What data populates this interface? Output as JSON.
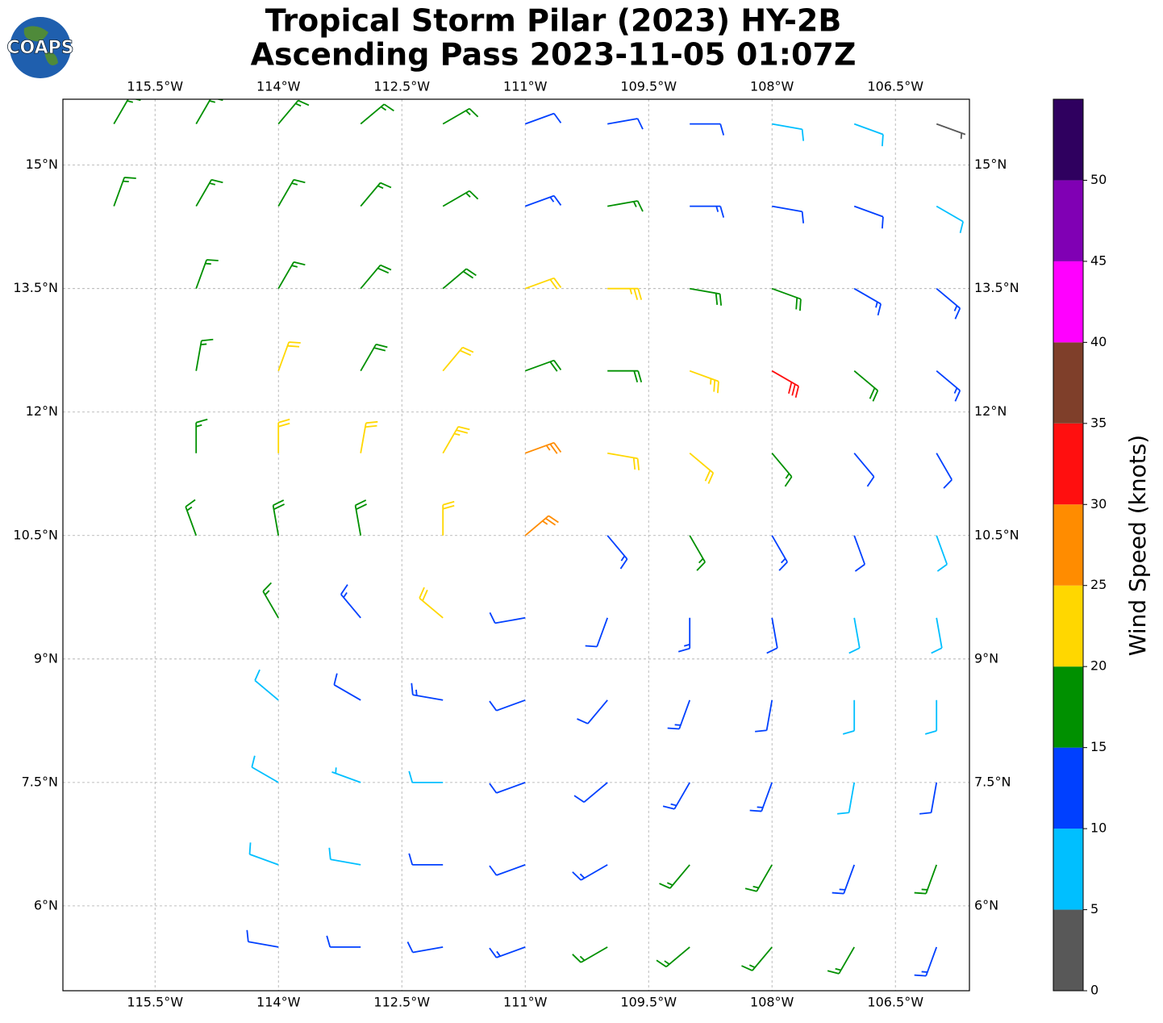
{
  "logo": "COAPS",
  "chart_data": {
    "type": "wind-barbs",
    "title": "Tropical Storm Pilar (2023) HY-2B",
    "subtitle": "Ascending Pass 2023-11-05 01:07Z",
    "xlim": [
      -116.62,
      -105.6
    ],
    "ylim": [
      4.97,
      15.8
    ],
    "grid": true,
    "xticks": [
      {
        "value": -115.5,
        "label": "115.5°W"
      },
      {
        "value": -114,
        "label": "114°W"
      },
      {
        "value": -112.5,
        "label": "112.5°W"
      },
      {
        "value": -111,
        "label": "111°W"
      },
      {
        "value": -109.5,
        "label": "109.5°W"
      },
      {
        "value": -108,
        "label": "108°W"
      },
      {
        "value": -106.5,
        "label": "106.5°W"
      }
    ],
    "yticks": [
      {
        "value": 6,
        "label": "6°N"
      },
      {
        "value": 7.5,
        "label": "7.5°N"
      },
      {
        "value": 9,
        "label": "9°N"
      },
      {
        "value": 10.5,
        "label": "10.5°N"
      },
      {
        "value": 12,
        "label": "12°N"
      },
      {
        "value": 13.5,
        "label": "13.5°N"
      },
      {
        "value": 15,
        "label": "15°N"
      }
    ],
    "colorbar": {
      "label": "Wind Speed (knots)",
      "lim": [
        0,
        55
      ],
      "ticks": [
        0,
        5,
        10,
        15,
        20,
        25,
        30,
        35,
        40,
        45,
        50
      ],
      "bins": [
        0,
        5,
        10,
        15,
        20,
        25,
        30,
        35,
        40,
        45,
        50,
        55
      ],
      "colors": [
        "#585858",
        "#00bfff",
        "#0040ff",
        "#009000",
        "#ffd700",
        "#ff8c00",
        "#ff0f0f",
        "#7f3f2a",
        "#ff00ff",
        "#8000b4",
        "#2f005f"
      ]
    },
    "winds": {
      "lon": [
        -116,
        -115,
        -114,
        -113,
        -112,
        -111,
        -110,
        -109,
        -108,
        -107,
        -106,
        -116,
        -115,
        -114,
        -113,
        -112,
        -111,
        -110,
        -109,
        -108,
        -107,
        -106,
        -115,
        -114,
        -113,
        -112,
        -111,
        -110,
        -109,
        -108,
        -107,
        -106,
        -115,
        -114,
        -113,
        -112,
        -111,
        -110,
        -109,
        -108,
        -107,
        -106,
        -115,
        -114,
        -113,
        -112,
        -111,
        -110,
        -109,
        -108,
        -107,
        -106,
        -115,
        -114,
        -113,
        -112,
        -111,
        -110,
        -109,
        -108,
        -107,
        -106,
        -114,
        -113,
        -112,
        -111,
        -110,
        -109,
        -108,
        -107,
        -106,
        -114,
        -113,
        -112,
        -111,
        -110,
        -109,
        -108,
        -107,
        -106,
        -114,
        -113,
        -112,
        -111,
        -110,
        -109,
        -108,
        -107,
        -106,
        -114,
        -113,
        -112,
        -111,
        -110,
        -109,
        -108,
        -107,
        -106,
        -114,
        -113,
        -112,
        -111,
        -110,
        -109,
        -108,
        -107,
        -106
      ],
      "lat": [
        15.5,
        15.5,
        15.5,
        15.5,
        15.5,
        15.5,
        15.5,
        15.5,
        15.5,
        15.5,
        15.5,
        14.5,
        14.5,
        14.5,
        14.5,
        14.5,
        14.5,
        14.5,
        14.5,
        14.5,
        14.5,
        14.5,
        13.5,
        13.5,
        13.5,
        13.5,
        13.5,
        13.5,
        13.5,
        13.5,
        13.5,
        13.5,
        12.5,
        12.5,
        12.5,
        12.5,
        12.5,
        12.5,
        12.5,
        12.5,
        12.5,
        12.5,
        11.5,
        11.5,
        11.5,
        11.5,
        11.5,
        11.5,
        11.5,
        11.5,
        11.5,
        11.5,
        10.5,
        10.5,
        10.5,
        10.5,
        10.5,
        10.5,
        10.5,
        10.5,
        10.5,
        10.5,
        9.5,
        9.5,
        9.5,
        9.5,
        9.5,
        9.5,
        9.5,
        9.5,
        9.5,
        8.5,
        8.5,
        8.5,
        8.5,
        8.5,
        8.5,
        8.5,
        8.5,
        8.5,
        7.5,
        7.5,
        7.5,
        7.5,
        7.5,
        7.5,
        7.5,
        7.5,
        7.5,
        6.5,
        6.5,
        6.5,
        6.5,
        6.5,
        6.5,
        6.5,
        6.5,
        6.5,
        5.5,
        5.5,
        5.5,
        5.5,
        5.5,
        5.5,
        5.5,
        5.5,
        5.5
      ],
      "speed": [
        17,
        17,
        17,
        17,
        17,
        12,
        12,
        12,
        8,
        8,
        4,
        17,
        17,
        17,
        17,
        17,
        14,
        16,
        13,
        12,
        12,
        8,
        17,
        17,
        18,
        19,
        22,
        23,
        19,
        18,
        14,
        13,
        17,
        21,
        19,
        22,
        18,
        19,
        24,
        32,
        19,
        13,
        17,
        21,
        22,
        23,
        27,
        22,
        21,
        16,
        12,
        11,
        17,
        18,
        19,
        22,
        26,
        13,
        16,
        13,
        11,
        9,
        17,
        13,
        21,
        11,
        12,
        13,
        12,
        9,
        9,
        9,
        12,
        13,
        12,
        12,
        13,
        12,
        9,
        8,
        8,
        7,
        9,
        11,
        12,
        13,
        13,
        9,
        11,
        8,
        9,
        11,
        12,
        13,
        16,
        16,
        14,
        17,
        11,
        12,
        12,
        13,
        16,
        17,
        17,
        16,
        14
      ],
      "direction": [
        30,
        30,
        40,
        50,
        60,
        70,
        80,
        90,
        100,
        110,
        110,
        20,
        30,
        30,
        40,
        60,
        70,
        80,
        90,
        100,
        110,
        120,
        20,
        30,
        40,
        50,
        70,
        90,
        100,
        110,
        120,
        130,
        10,
        20,
        30,
        40,
        70,
        90,
        110,
        120,
        130,
        130,
        0,
        0,
        10,
        30,
        70,
        100,
        130,
        140,
        140,
        150,
        340,
        350,
        350,
        0,
        50,
        140,
        150,
        150,
        160,
        160,
        330,
        320,
        310,
        260,
        200,
        180,
        170,
        170,
        170,
        310,
        300,
        280,
        250,
        220,
        200,
        190,
        180,
        180,
        300,
        290,
        270,
        250,
        230,
        210,
        200,
        190,
        190,
        290,
        280,
        270,
        250,
        240,
        220,
        210,
        200,
        200,
        280,
        270,
        260,
        250,
        240,
        230,
        220,
        210,
        200
      ]
    }
  }
}
